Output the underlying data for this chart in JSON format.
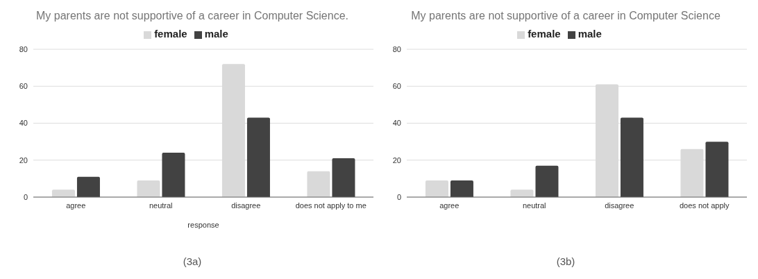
{
  "chart_data": [
    {
      "type": "bar",
      "title": "My parents are not supportive of a career in Computer Science.",
      "xlabel": "response",
      "categories": [
        "agree",
        "neutral",
        "disagree",
        "does not apply to me"
      ],
      "series": [
        {
          "name": "female",
          "color": "#d9d9d9",
          "values": [
            4,
            9,
            72,
            14
          ]
        },
        {
          "name": "male",
          "color": "#424242",
          "values": [
            11,
            24,
            43,
            21
          ]
        }
      ],
      "ylim": [
        0,
        80
      ],
      "yticks": [
        0,
        20,
        40,
        60,
        80
      ],
      "grid": "y",
      "legend": "top",
      "annotations": [
        "(3a)"
      ]
    },
    {
      "type": "bar",
      "title": "My parents are not supportive of a career in Computer Science",
      "categories": [
        "agree",
        "neutral",
        "disagree",
        "does not apply"
      ],
      "series": [
        {
          "name": "female",
          "color": "#d9d9d9",
          "values": [
            9,
            4,
            61,
            26
          ]
        },
        {
          "name": "male",
          "color": "#424242",
          "values": [
            9,
            17,
            43,
            30
          ]
        }
      ],
      "ylim": [
        0,
        80
      ],
      "yticks": [
        0,
        20,
        40,
        60,
        80
      ],
      "grid": "y",
      "legend": "top",
      "annotations": [
        "(3b)"
      ]
    }
  ]
}
